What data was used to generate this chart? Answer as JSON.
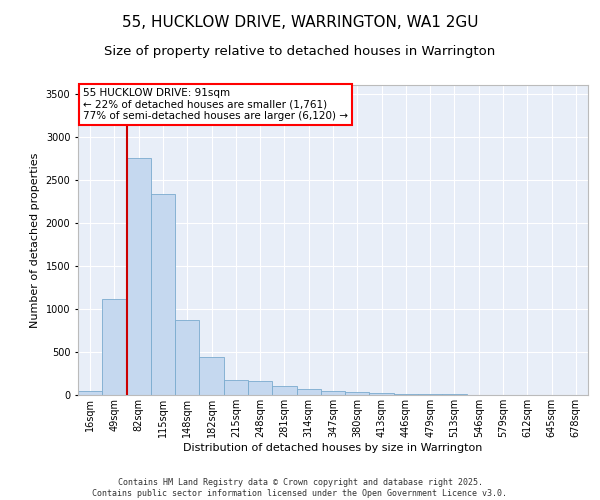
{
  "title": "55, HUCKLOW DRIVE, WARRINGTON, WA1 2GU",
  "subtitle": "Size of property relative to detached houses in Warrington",
  "xlabel": "Distribution of detached houses by size in Warrington",
  "ylabel": "Number of detached properties",
  "categories": [
    "16sqm",
    "49sqm",
    "82sqm",
    "115sqm",
    "148sqm",
    "182sqm",
    "215sqm",
    "248sqm",
    "281sqm",
    "314sqm",
    "347sqm",
    "380sqm",
    "413sqm",
    "446sqm",
    "479sqm",
    "513sqm",
    "546sqm",
    "579sqm",
    "612sqm",
    "645sqm",
    "678sqm"
  ],
  "values": [
    50,
    1120,
    2750,
    2330,
    870,
    440,
    175,
    160,
    110,
    65,
    50,
    30,
    20,
    15,
    10,
    7,
    5,
    5,
    3,
    2,
    2
  ],
  "bar_color": "#c5d8ef",
  "bar_edge_color": "#7aabce",
  "bg_color": "#e8eef8",
  "grid_color": "#ffffff",
  "annotation_text_line1": "55 HUCKLOW DRIVE: 91sqm",
  "annotation_text_line2": "← 22% of detached houses are smaller (1,761)",
  "annotation_text_line3": "77% of semi-detached houses are larger (6,120) →",
  "vline_color": "#cc0000",
  "ylim": [
    0,
    3600
  ],
  "yticks": [
    0,
    500,
    1000,
    1500,
    2000,
    2500,
    3000,
    3500
  ],
  "footer1": "Contains HM Land Registry data © Crown copyright and database right 2025.",
  "footer2": "Contains public sector information licensed under the Open Government Licence v3.0.",
  "title_fontsize": 11,
  "subtitle_fontsize": 9.5,
  "label_fontsize": 8,
  "tick_fontsize": 7,
  "annot_fontsize": 7.5,
  "footer_fontsize": 6
}
